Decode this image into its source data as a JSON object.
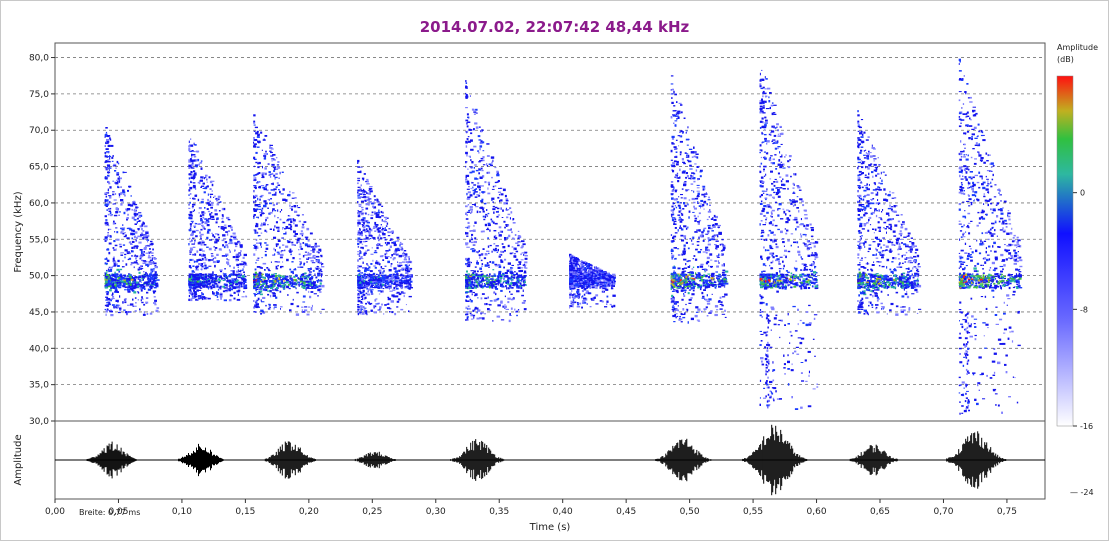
{
  "chart_data": {
    "type": "heatmap",
    "title": "2014.07.02, 22:07:42 48,44 kHz",
    "spectrogram": {
      "xlabel": "Time (s)",
      "ylabel": "Frequency (kHz)",
      "xlim": [
        0.0,
        0.78
      ],
      "ylim": [
        30.0,
        82.0
      ],
      "yticks": [
        "30,0",
        "35,0",
        "40,0",
        "45,0",
        "50,0",
        "55,0",
        "60,0",
        "65,0",
        "70,0",
        "75,0",
        "80,0"
      ],
      "ytick_values": [
        30,
        35,
        40,
        45,
        50,
        55,
        60,
        65,
        70,
        75,
        80
      ],
      "grid": "horizontal dashed",
      "calls": [
        {
          "t_start": 0.039,
          "t_end": 0.08,
          "f_top": 71,
          "f_low": 45,
          "peak_db": -2
        },
        {
          "t_start": 0.105,
          "t_end": 0.15,
          "f_top": 70,
          "f_low": 47,
          "peak_db": -4
        },
        {
          "t_start": 0.156,
          "t_end": 0.21,
          "f_top": 73,
          "f_low": 45,
          "peak_db": -1
        },
        {
          "t_start": 0.238,
          "t_end": 0.28,
          "f_top": 66,
          "f_low": 45,
          "peak_db": -6
        },
        {
          "t_start": 0.323,
          "t_end": 0.37,
          "f_top": 77,
          "f_low": 44,
          "peak_db": -2
        },
        {
          "t_start": 0.405,
          "t_end": 0.44,
          "f_top": 53,
          "f_low": 46,
          "peak_db": -8
        },
        {
          "t_start": 0.485,
          "t_end": 0.528,
          "f_top": 78,
          "f_low": 44,
          "peak_db": 0
        },
        {
          "t_start": 0.555,
          "t_end": 0.6,
          "f_top": 80,
          "f_low": 32,
          "peak_db": 0
        },
        {
          "t_start": 0.632,
          "t_end": 0.68,
          "f_top": 73,
          "f_low": 45,
          "peak_db": -1
        },
        {
          "t_start": 0.712,
          "t_end": 0.76,
          "f_top": 80,
          "f_low": 31,
          "peak_db": 0
        }
      ]
    },
    "waveform": {
      "ylabel": "Amplitude",
      "envelope": [
        {
          "t": 0.045,
          "amp": 0.5
        },
        {
          "t": 0.115,
          "amp": 0.45
        },
        {
          "t": 0.185,
          "amp": 0.55
        },
        {
          "t": 0.252,
          "amp": 0.25
        },
        {
          "t": 0.333,
          "amp": 0.6
        },
        {
          "t": 0.495,
          "amp": 0.65
        },
        {
          "t": 0.567,
          "amp": 1.0
        },
        {
          "t": 0.645,
          "amp": 0.45
        },
        {
          "t": 0.725,
          "amp": 0.85
        }
      ]
    },
    "xticks": [
      "0,00",
      "0,05",
      "0,10",
      "0,15",
      "0,20",
      "0,25",
      "0,30",
      "0,35",
      "0,40",
      "0,45",
      "0,50",
      "0,55",
      "0,60",
      "0,65",
      "0,70",
      "0,75"
    ],
    "xtick_values": [
      0.0,
      0.05,
      0.1,
      0.15,
      0.2,
      0.25,
      0.3,
      0.35,
      0.4,
      0.45,
      0.5,
      0.55,
      0.6,
      0.65,
      0.7,
      0.75
    ],
    "colorbar": {
      "label": "Amplitude",
      "unit": "(dB)",
      "ticks": [
        "0",
        "-8",
        "-16"
      ],
      "tick_values": [
        0,
        -8,
        -16
      ],
      "range": [
        -16,
        8
      ],
      "colors": [
        "#ffffff",
        "#1010ff",
        "#20c060",
        "#d0c020",
        "#ff1010"
      ],
      "waveform_tick": "-24"
    },
    "breite_label": "Breite: 0,77 ms"
  }
}
